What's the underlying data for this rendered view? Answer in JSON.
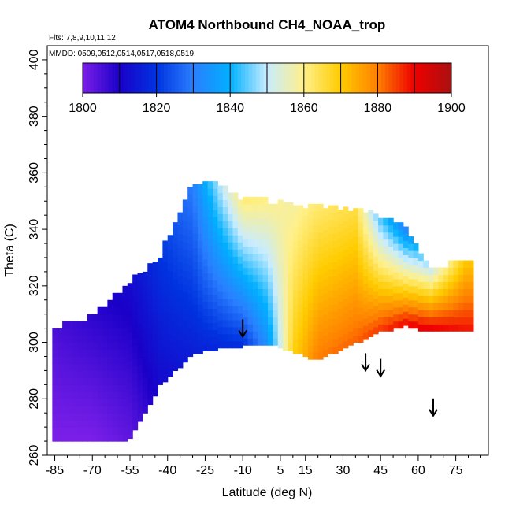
{
  "chart_data": {
    "type": "heatmap",
    "title": "ATOM4 Northbound CH4_NOAA_trop",
    "flights_note": "Flts: 7,8,9,10,11,12",
    "dates_note": "MMDD: 0509,0512,0514,0517,0518,0519",
    "xlabel": "Latitude (deg N)",
    "ylabel": "Theta (C)",
    "xlim": [
      -88,
      88
    ],
    "ylim": [
      260,
      405
    ],
    "x_ticks": [
      -85,
      -70,
      -55,
      -40,
      -25,
      -10,
      5,
      15,
      30,
      45,
      60,
      75
    ],
    "y_ticks": [
      260,
      280,
      300,
      320,
      340,
      360,
      380,
      400
    ],
    "colorbar": {
      "range": [
        1800,
        1900
      ],
      "ticks": [
        1800,
        1820,
        1840,
        1860,
        1880,
        1900
      ],
      "colors": [
        "#7a1fe8",
        "#1a00c8",
        "#0033e0",
        "#2a7fff",
        "#00b0ff",
        "#c8ecff",
        "#fff08a",
        "#ffcc00",
        "#ff8000",
        "#ee0000",
        "#aa1010"
      ]
    },
    "field_profiles": [
      {
        "lat": -86,
        "bottom": 266,
        "top": 304,
        "v_low": 1800,
        "v_high": 1805
      },
      {
        "lat": -70,
        "bottom": 265,
        "top": 308,
        "v_low": 1800,
        "v_high": 1808
      },
      {
        "lat": -55,
        "bottom": 266,
        "top": 320,
        "v_low": 1803,
        "v_high": 1812
      },
      {
        "lat": -43,
        "bottom": 285,
        "top": 330,
        "v_low": 1812,
        "v_high": 1820
      },
      {
        "lat": -30,
        "bottom": 296,
        "top": 355,
        "v_low": 1816,
        "v_high": 1830
      },
      {
        "lat": -20,
        "bottom": 298,
        "top": 355,
        "v_low": 1818,
        "v_high": 1848
      },
      {
        "lat": -10,
        "bottom": 299,
        "top": 350,
        "v_low": 1820,
        "v_high": 1862
      },
      {
        "lat": 0,
        "bottom": 300,
        "top": 349,
        "v_low": 1835,
        "v_high": 1860
      },
      {
        "lat": 10,
        "bottom": 297,
        "top": 348,
        "v_low": 1868,
        "v_high": 1858
      },
      {
        "lat": 20,
        "bottom": 294,
        "top": 347,
        "v_low": 1880,
        "v_high": 1862
      },
      {
        "lat": 35,
        "bottom": 300,
        "top": 346,
        "v_low": 1882,
        "v_high": 1865
      },
      {
        "lat": 45,
        "bottom": 304,
        "top": 344,
        "v_low": 1885,
        "v_high": 1842
      },
      {
        "lat": 55,
        "bottom": 306,
        "top": 340,
        "v_low": 1888,
        "v_high": 1830
      },
      {
        "lat": 65,
        "bottom": 304,
        "top": 325,
        "v_low": 1890,
        "v_high": 1850
      },
      {
        "lat": 79,
        "bottom": 304,
        "top": 328,
        "v_low": 1888,
        "v_high": 1870
      }
    ],
    "arrows": [
      {
        "lat": -10,
        "theta": 302
      },
      {
        "lat": 39,
        "theta": 290
      },
      {
        "lat": 45,
        "theta": 288
      },
      {
        "lat": 66,
        "theta": 274
      }
    ],
    "grid": false
  }
}
